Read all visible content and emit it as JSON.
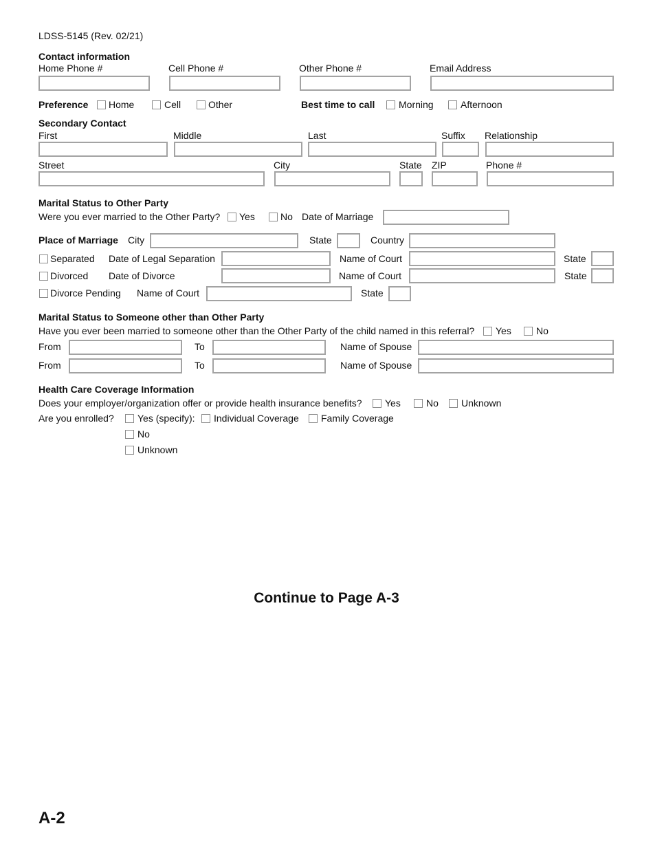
{
  "form_id": "LDSS-5145 (Rev. 02/21)",
  "contact": {
    "heading": "Contact information",
    "home_phone": {
      "label": "Home Phone #",
      "value": ""
    },
    "cell_phone": {
      "label": "Cell Phone #",
      "value": ""
    },
    "other_phone": {
      "label": "Other Phone #",
      "value": ""
    },
    "email": {
      "label": "Email Address",
      "value": ""
    },
    "preference": {
      "label": "Preference",
      "options": [
        "Home",
        "Cell",
        "Other"
      ]
    },
    "best_time": {
      "label": "Best time to call",
      "options": [
        "Morning",
        "Afternoon"
      ]
    }
  },
  "secondary": {
    "heading": "Secondary Contact",
    "labels": {
      "first": "First",
      "middle": "Middle",
      "last": "Last",
      "suffix": "Suffix",
      "relationship": "Relationship",
      "street": "Street",
      "city": "City",
      "state": "State",
      "zip": "ZIP",
      "phone": "Phone #"
    }
  },
  "marital_other_party": {
    "heading": "Marital Status to Other Party",
    "question": "Were you ever married to the Other Party?",
    "yes": "Yes",
    "no": "No",
    "date_of_marriage": "Date of Marriage",
    "place_of_marriage": "Place of Marriage",
    "city": "City",
    "state": "State",
    "country": "Country",
    "separated": "Separated",
    "date_legal_separation": "Date of Legal Separation",
    "divorced": "Divorced",
    "date_of_divorce": "Date of Divorce",
    "divorce_pending": "Divorce Pending",
    "name_of_court": "Name of Court"
  },
  "marital_someone_else": {
    "heading": "Marital Status to Someone other than Other Party",
    "question": "Have you ever been married to someone other than the Other Party of the child named in this referral?",
    "yes": "Yes",
    "no": "No",
    "from": "From",
    "to": "To",
    "name_of_spouse": "Name of Spouse"
  },
  "health": {
    "heading": "Health Care Coverage Information",
    "question": "Does your employer/organization offer or provide health insurance benefits?",
    "q_options": [
      "Yes",
      "No",
      "Unknown"
    ],
    "enrolled": "Are you enrolled?",
    "yes_specify": "Yes (specify):",
    "individual": "Individual Coverage",
    "family": "Family Coverage",
    "no": "No",
    "unknown": "Unknown"
  },
  "continue_text": "Continue to Page A-3",
  "page_number": "A-2"
}
